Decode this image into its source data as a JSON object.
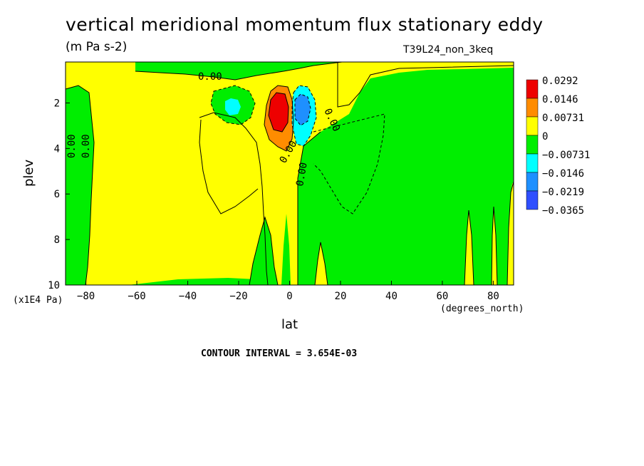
{
  "chart_data": {
    "type": "heatmap",
    "title": "vertical meridional momentum flux stationary eddy",
    "units": "(m Pa s-2)",
    "run_label": "T39L24_non_3keq",
    "xlabel": "lat",
    "ylabel": "plev",
    "x_units_left": "(x1E4 Pa)",
    "x_units_right": "(degrees_north)",
    "contour_interval_text": "CONTOUR INTERVAL = 3.654E-03",
    "xlim": [
      -88,
      88
    ],
    "ylim": [
      10,
      0.2
    ],
    "x_ticks": [
      -80,
      -60,
      -40,
      -20,
      0,
      20,
      40,
      60,
      80
    ],
    "y_ticks": [
      2,
      4,
      6,
      8,
      10
    ],
    "contour_labels": [
      "0.00",
      "0.00",
      "0.00",
      "0.00",
      "0.00",
      "0.00"
    ],
    "legend": [
      {
        "label": "0.0292",
        "color": "#ee0000"
      },
      {
        "label": "0.0146",
        "color": "#ff8c00"
      },
      {
        "label": "0.00731",
        "color": "#ffff00"
      },
      {
        "label": "0",
        "color": "#00ee00"
      },
      {
        "label": "−0.00731",
        "color": "#00ffff"
      },
      {
        "label": "−0.0146",
        "color": "#1e90ff"
      },
      {
        "label": "−0.0219",
        "color": "#1e6cff"
      },
      {
        "label": "−0.0365",
        "color": ""
      }
    ],
    "colors": {
      "yellow": "#ffff00",
      "green": "#00ee00",
      "red": "#ee0000",
      "orange": "#ff8c00",
      "cyan": "#00ffff",
      "blue": "#1e90ff"
    }
  }
}
